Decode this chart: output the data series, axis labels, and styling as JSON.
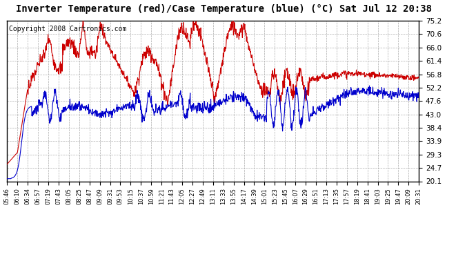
{
  "title": "Inverter Temperature (red)/Case Temperature (blue) (°C) Sat Jul 12 20:38",
  "copyright": "Copyright 2008 Cartronics.com",
  "y_ticks": [
    20.1,
    24.7,
    29.3,
    33.9,
    38.4,
    43.0,
    47.6,
    52.2,
    56.8,
    61.4,
    66.0,
    70.6,
    75.2
  ],
  "y_min": 20.1,
  "y_max": 75.2,
  "x_labels": [
    "05:46",
    "06:10",
    "06:34",
    "06:57",
    "07:19",
    "07:43",
    "08:05",
    "08:25",
    "08:47",
    "09:09",
    "09:31",
    "09:53",
    "10:15",
    "10:37",
    "10:59",
    "11:21",
    "11:43",
    "12:05",
    "12:27",
    "12:49",
    "13:11",
    "13:33",
    "13:55",
    "14:17",
    "14:39",
    "15:01",
    "15:23",
    "15:45",
    "16:07",
    "16:29",
    "16:51",
    "17:13",
    "17:35",
    "17:57",
    "18:19",
    "18:41",
    "19:03",
    "19:25",
    "19:47",
    "20:09",
    "20:31"
  ],
  "red_color": "#cc0000",
  "blue_color": "#0000cc",
  "bg_color": "#ffffff",
  "grid_color": "#aaaaaa",
  "title_fontsize": 10,
  "copyright_fontsize": 7
}
